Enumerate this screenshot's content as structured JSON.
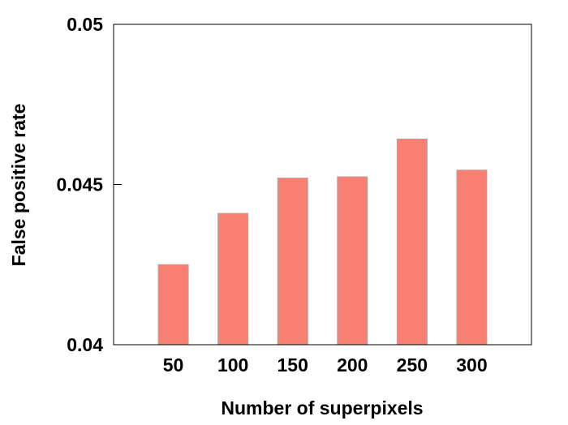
{
  "chart_data": {
    "type": "bar",
    "title": "",
    "xlabel": "Number of superpixels",
    "ylabel": "False positive rate",
    "categories": [
      "50",
      "100",
      "150",
      "200",
      "250",
      "300"
    ],
    "values": [
      0.0425,
      0.0441,
      0.0452,
      0.04524,
      0.04642,
      0.04545
    ],
    "ylim": [
      0.04,
      0.05
    ],
    "yticks": [
      0.04,
      0.045,
      0.05
    ],
    "ytick_labels": [
      "0.04",
      "0.045",
      "0.05"
    ],
    "xlim": [
      0,
      7
    ],
    "x_positions": [
      1,
      2,
      3,
      4,
      5,
      6
    ],
    "grid": false,
    "legend": "none",
    "bar_color": "#f88072",
    "bar_edge_color": "#a8a8a8"
  }
}
